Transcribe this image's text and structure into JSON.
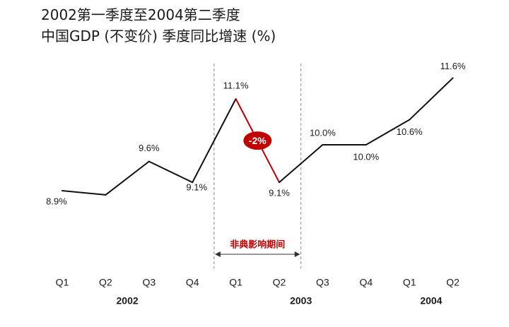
{
  "title": {
    "line1": "2002第一季度至2004第二季度",
    "line2": "中国GDP (不变价) 季度同比增速 (%)"
  },
  "colors": {
    "line": "#111111",
    "highlight": "#c00000",
    "divider": "#888888"
  },
  "annotation": {
    "period_label": "非典影响期间",
    "change_badge": "-2%"
  },
  "chart_data": {
    "type": "line",
    "categories": [
      "Q1",
      "Q2",
      "Q3",
      "Q4",
      "Q1",
      "Q2",
      "Q3",
      "Q4",
      "Q1",
      "Q2"
    ],
    "years": [
      {
        "label": "2002",
        "span": [
          0,
          3
        ]
      },
      {
        "label": "2003",
        "span": [
          4,
          7
        ]
      },
      {
        "label": "2004",
        "span": [
          8,
          9
        ]
      }
    ],
    "values": [
      8.9,
      8.8,
      9.6,
      9.1,
      11.1,
      9.1,
      10.0,
      10.0,
      10.6,
      11.6
    ],
    "data_labels": [
      "8.9%",
      "",
      "9.6%",
      "9.1%",
      "11.1%",
      "9.1%",
      "10.0%",
      "10.0%",
      "10.6%",
      "11.6%"
    ],
    "highlight_segment": [
      4,
      5
    ],
    "ylim": [
      7.5,
      12.2
    ]
  }
}
